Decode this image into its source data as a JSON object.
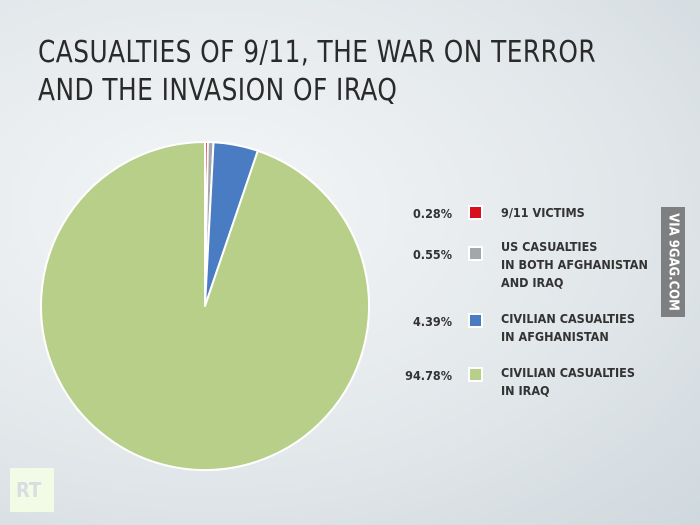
{
  "title": "CASUALTIES OF 9/11, THE WAR ON TERROR AND THE INVASION OF IRAQ",
  "watermark": "VIA 9GAG.COM",
  "logo": "RT",
  "chart_data": {
    "type": "pie",
    "title": "CASUALTIES OF 9/11, THE WAR ON TERROR AND THE INVASION OF IRAQ",
    "legend_position": "right",
    "slices": [
      {
        "label": "9/11 VICTIMS",
        "value": 0.28,
        "pct": "0.28%",
        "color": "#d7101e"
      },
      {
        "label": "US CASUALTIES\nIN BOTH AFGHANISTAN\nAND IRAQ",
        "value": 0.55,
        "pct": "0.55%",
        "color": "#a4a7aa"
      },
      {
        "label": "CIVILIAN CASUALTIES\nIN AFGHANISTAN",
        "value": 4.39,
        "pct": "4.39%",
        "color": "#4a7cc4"
      },
      {
        "label": "CIVILIAN CASUALTIES\nIN IRAQ",
        "value": 94.78,
        "pct": "94.78%",
        "color": "#b8cf8a"
      }
    ]
  }
}
